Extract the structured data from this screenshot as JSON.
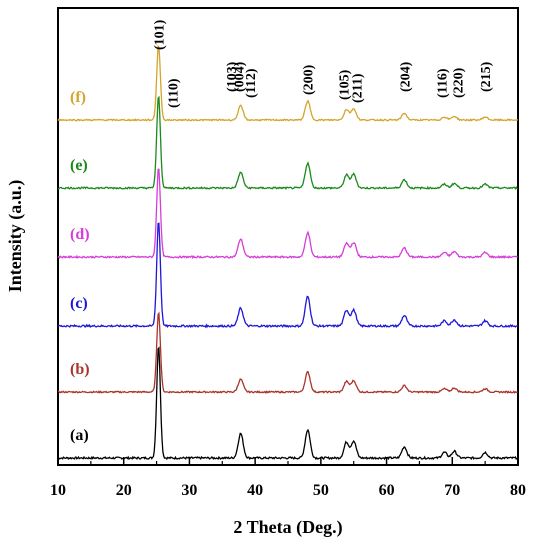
{
  "chart_data": {
    "type": "line",
    "xlabel": "2 Theta (Deg.)",
    "ylabel": "Intensity (a.u.)",
    "xlim": [
      10,
      80
    ],
    "xticks": [
      10,
      20,
      30,
      40,
      50,
      60,
      70,
      80
    ],
    "yticks_shown": false,
    "peaks": [
      {
        "label": "(101)",
        "x": 25.3
      },
      {
        "label": "(110)",
        "x": 27.4
      },
      {
        "label": "(103)",
        "x": 36.9
      },
      {
        "label": "(004)",
        "x": 37.8
      },
      {
        "label": "(112)",
        "x": 38.6
      },
      {
        "label": "(200)",
        "x": 48.0
      },
      {
        "label": "(105)",
        "x": 53.9
      },
      {
        "label": "(211)",
        "x": 55.0
      },
      {
        "label": "(204)",
        "x": 62.7
      },
      {
        "label": "(116)",
        "x": 68.8
      },
      {
        "label": "(220)",
        "x": 70.3
      },
      {
        "label": "(215)",
        "x": 75.0
      }
    ],
    "series": [
      {
        "name": "(a)",
        "color": "#000000",
        "amplitudes": {
          "101": 1.0,
          "004": 0.22,
          "200": 0.25,
          "105": 0.14,
          "211": 0.15,
          "204": 0.1,
          "116": 0.05,
          "220": 0.06,
          "215": 0.05
        }
      },
      {
        "name": "(b)",
        "color": "#a8342b",
        "amplitudes": {
          "101": 1.0,
          "004": 0.16,
          "200": 0.25,
          "105": 0.13,
          "211": 0.14,
          "204": 0.08,
          "116": 0.04,
          "220": 0.05,
          "215": 0.04
        }
      },
      {
        "name": "(c)",
        "color": "#1f16d8",
        "amplitudes": {
          "101": 1.0,
          "004": 0.17,
          "200": 0.28,
          "105": 0.15,
          "211": 0.15,
          "204": 0.1,
          "116": 0.05,
          "220": 0.06,
          "215": 0.05
        }
      },
      {
        "name": "(d)",
        "color": "#d43ed8",
        "amplitudes": {
          "101": 1.0,
          "004": 0.2,
          "200": 0.27,
          "105": 0.15,
          "211": 0.16,
          "204": 0.1,
          "116": 0.05,
          "220": 0.06,
          "215": 0.05
        }
      },
      {
        "name": "(e)",
        "color": "#1a8a1a",
        "amplitudes": {
          "101": 1.0,
          "004": 0.17,
          "200": 0.27,
          "105": 0.14,
          "211": 0.15,
          "204": 0.09,
          "116": 0.04,
          "220": 0.05,
          "215": 0.04
        }
      },
      {
        "name": "(f)",
        "color": "#d4a52a",
        "amplitudes": {
          "101": 1.0,
          "004": 0.19,
          "200": 0.25,
          "105": 0.14,
          "211": 0.15,
          "204": 0.09,
          "116": 0.04,
          "220": 0.05,
          "215": 0.04
        }
      }
    ]
  }
}
